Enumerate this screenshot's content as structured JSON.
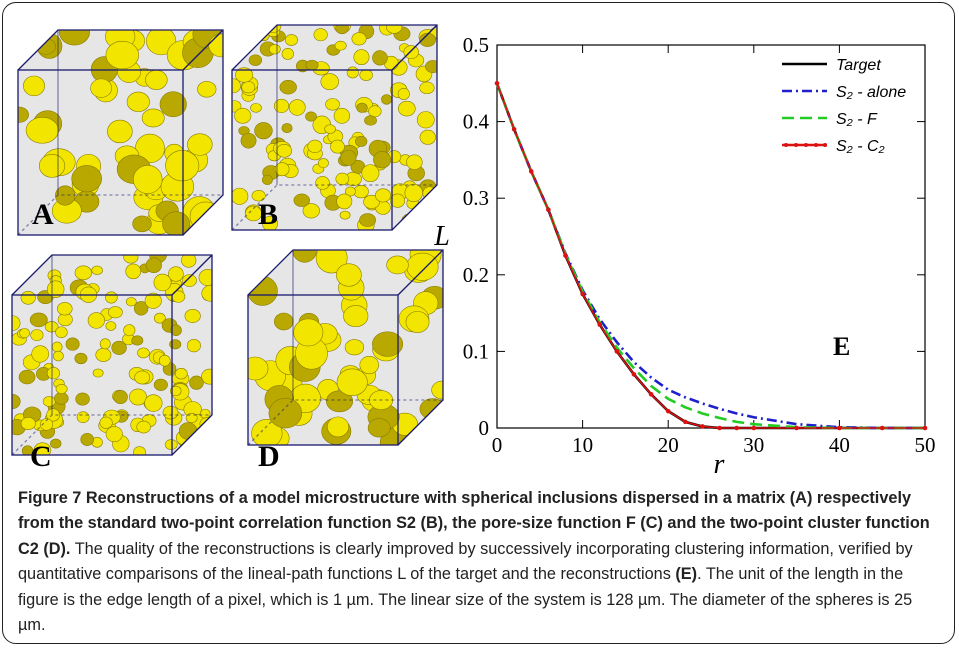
{
  "panels": [
    "A",
    "B",
    "C",
    "D"
  ],
  "chart_data": {
    "type": "line",
    "annotation": "E",
    "x_label": "r",
    "y_label": "L",
    "x": [
      0,
      2,
      4,
      6,
      8,
      10,
      12,
      14,
      16,
      18,
      20,
      22,
      24,
      26,
      28,
      30,
      35,
      40,
      45,
      50
    ],
    "series": [
      {
        "name": "Target",
        "color": "#000000",
        "style": "solid",
        "values": [
          0.45,
          0.39,
          0.335,
          0.285,
          0.225,
          0.175,
          0.135,
          0.1,
          0.07,
          0.044,
          0.022,
          0.008,
          0.002,
          0,
          0,
          0,
          0,
          0,
          0,
          0
        ]
      },
      {
        "name": "S₂ - alone",
        "color": "#1f1fcc",
        "style": "dashdot",
        "values": [
          0.45,
          0.39,
          0.335,
          0.285,
          0.228,
          0.18,
          0.142,
          0.112,
          0.086,
          0.066,
          0.05,
          0.04,
          0.032,
          0.025,
          0.019,
          0.014,
          0.005,
          0.001,
          0,
          0
        ]
      },
      {
        "name": "S₂ - F",
        "color": "#22cc22",
        "style": "dashed",
        "values": [
          0.45,
          0.39,
          0.335,
          0.285,
          0.227,
          0.178,
          0.138,
          0.105,
          0.078,
          0.055,
          0.038,
          0.027,
          0.019,
          0.013,
          0.008,
          0.005,
          0.001,
          0,
          0,
          0
        ]
      },
      {
        "name": "S₂ - C₂",
        "color": "#dd1111",
        "style": "dotted-line",
        "values": [
          0.45,
          0.39,
          0.335,
          0.285,
          0.225,
          0.175,
          0.135,
          0.1,
          0.07,
          0.044,
          0.022,
          0.008,
          0.002,
          0,
          0,
          0,
          0,
          0,
          0,
          0
        ]
      }
    ],
    "xlim": [
      0,
      50
    ],
    "ylim": [
      0,
      0.5
    ],
    "xticks": [
      0,
      10,
      20,
      30,
      40,
      50
    ],
    "yticks": [
      0,
      0.1,
      0.2,
      0.3,
      0.4,
      0.5
    ],
    "legend": "upper-right"
  },
  "caption": {
    "label": "Figure 7",
    "title": "Reconstructions of a model microstructure with spherical inclusions dispersed in a matrix (A) respectively from the standard two-point correlation function S2 (B), the pore-size function F (C) and the two-point cluster function C2 (D).",
    "body": "The quality of the reconstructions is clearly improved by successively incorporating clustering information, verified by quantitative comparisons of the lineal-path functions L of the target and the reconstructions",
    "ref": "(E)",
    "body_end": ". The unit of the length in the figure is the edge length of a pixel, which is 1 µm. The linear size of the system is 128 µm. The diameter of the spheres is 25 µm."
  }
}
